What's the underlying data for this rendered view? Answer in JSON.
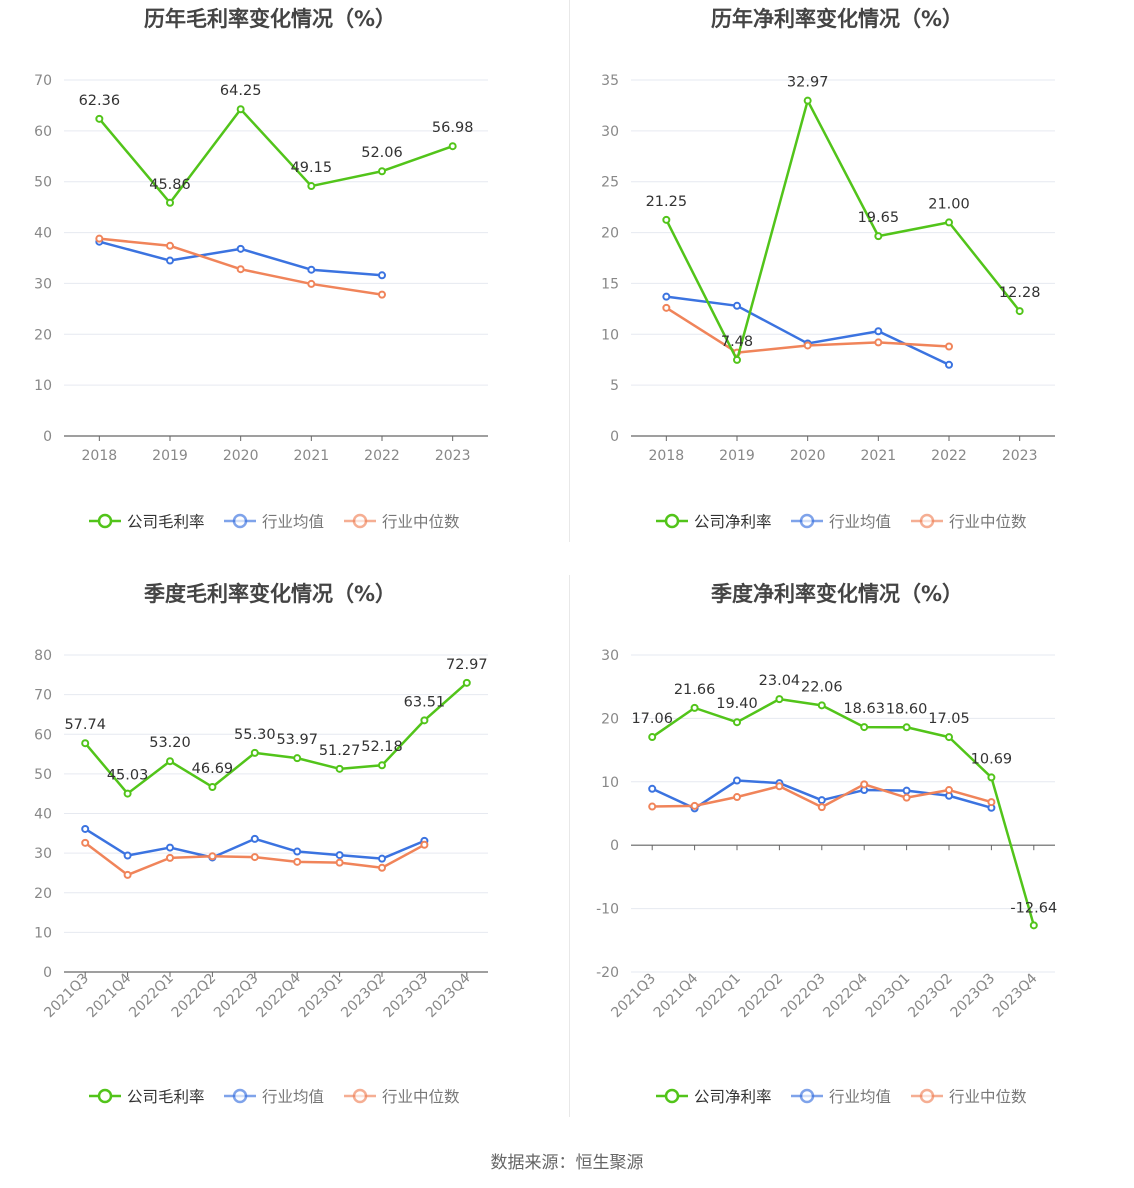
{
  "footer": {
    "source": "数据来源：恒生聚源"
  },
  "colors": {
    "company": "#52c41a",
    "avg": "#3b73e0",
    "median": "#f0845a",
    "axis": "#888888",
    "grid": "#e6e9f0",
    "label": "#333333",
    "title": "#444444"
  },
  "chart_data": [
    {
      "type": "line",
      "title": "历年毛利率变化情况（%）",
      "categories": [
        "2018",
        "2019",
        "2020",
        "2021",
        "2022",
        "2023"
      ],
      "ylim": [
        0,
        70
      ],
      "yticks": [
        0,
        10,
        20,
        30,
        40,
        50,
        60,
        70
      ],
      "rotate_x": false,
      "series": [
        {
          "name": "公司毛利率",
          "key": "company",
          "values": [
            62.36,
            45.86,
            64.25,
            49.15,
            52.06,
            56.98
          ],
          "labels": [
            "62.36",
            "45.86",
            "64.25",
            "49.15",
            "52.06",
            "56.98"
          ]
        },
        {
          "name": "行业均值",
          "key": "avg",
          "values": [
            38.2,
            34.5,
            36.8,
            32.7,
            31.6,
            null
          ]
        },
        {
          "name": "行业中位数",
          "key": "median",
          "values": [
            38.8,
            37.4,
            32.8,
            29.9,
            27.8,
            null
          ]
        }
      ]
    },
    {
      "type": "line",
      "title": "历年净利率变化情况（%）",
      "categories": [
        "2018",
        "2019",
        "2020",
        "2021",
        "2022",
        "2023"
      ],
      "ylim": [
        0,
        35
      ],
      "yticks": [
        0,
        5,
        10,
        15,
        20,
        25,
        30,
        35
      ],
      "rotate_x": false,
      "series": [
        {
          "name": "公司净利率",
          "key": "company",
          "values": [
            21.25,
            7.48,
            32.97,
            19.65,
            21.0,
            12.28
          ],
          "labels": [
            "21.25",
            "7.48",
            "32.97",
            "19.65",
            "21.00",
            "12.28"
          ]
        },
        {
          "name": "行业均值",
          "key": "avg",
          "values": [
            13.7,
            12.8,
            9.1,
            10.3,
            7.0,
            null
          ]
        },
        {
          "name": "行业中位数",
          "key": "median",
          "values": [
            12.6,
            8.2,
            8.9,
            9.2,
            8.8,
            null
          ]
        }
      ]
    },
    {
      "type": "line",
      "title": "季度毛利率变化情况（%）",
      "categories": [
        "2021Q3",
        "2021Q4",
        "2022Q1",
        "2022Q2",
        "2022Q3",
        "2022Q4",
        "2023Q1",
        "2023Q2",
        "2023Q3",
        "2023Q4"
      ],
      "ylim": [
        0,
        80
      ],
      "yticks": [
        0,
        10,
        20,
        30,
        40,
        50,
        60,
        70,
        80
      ],
      "rotate_x": true,
      "series": [
        {
          "name": "公司毛利率",
          "key": "company",
          "values": [
            57.74,
            45.03,
            53.2,
            46.69,
            55.3,
            53.97,
            51.27,
            52.18,
            63.51,
            72.97
          ],
          "labels": [
            "57.74",
            "45.03",
            "53.20",
            "46.69",
            "55.30",
            "53.97",
            "51.27",
            "52.18",
            "63.51",
            "72.97"
          ]
        },
        {
          "name": "行业均值",
          "key": "avg",
          "values": [
            36.1,
            29.4,
            31.4,
            28.9,
            33.6,
            30.4,
            29.5,
            28.6,
            33.1,
            null
          ]
        },
        {
          "name": "行业中位数",
          "key": "median",
          "values": [
            32.6,
            24.5,
            28.8,
            29.2,
            29.0,
            27.8,
            27.6,
            26.3,
            32.1,
            null
          ]
        }
      ]
    },
    {
      "type": "line",
      "title": "季度净利率变化情况（%）",
      "categories": [
        "2021Q3",
        "2021Q4",
        "2022Q1",
        "2022Q2",
        "2022Q3",
        "2022Q4",
        "2023Q1",
        "2023Q2",
        "2023Q3",
        "2023Q4"
      ],
      "ylim": [
        -20,
        30
      ],
      "yticks": [
        -20,
        -10,
        0,
        10,
        20,
        30
      ],
      "rotate_x": true,
      "series": [
        {
          "name": "公司净利率",
          "key": "company",
          "values": [
            17.06,
            21.66,
            19.4,
            23.04,
            22.06,
            18.63,
            18.6,
            17.05,
            10.69,
            -12.64
          ],
          "labels": [
            "17.06",
            "21.66",
            "19.40",
            "23.04",
            "22.06",
            "18.63",
            "18.60",
            "17.05",
            "10.69",
            "-12.64"
          ]
        },
        {
          "name": "行业均值",
          "key": "avg",
          "values": [
            8.9,
            5.8,
            10.2,
            9.8,
            7.1,
            8.7,
            8.6,
            7.8,
            5.9,
            null
          ]
        },
        {
          "name": "行业中位数",
          "key": "median",
          "values": [
            6.1,
            6.2,
            7.6,
            9.3,
            6.0,
            9.6,
            7.5,
            8.7,
            6.8,
            null
          ]
        }
      ]
    }
  ]
}
